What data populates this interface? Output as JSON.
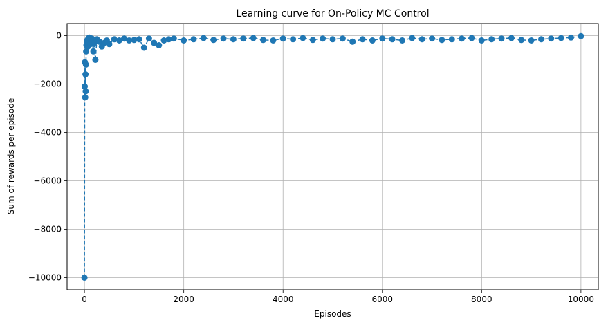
{
  "chart_data": {
    "type": "line",
    "title": "Learning curve for On-Policy MC Control",
    "xlabel": "Episodes",
    "ylabel": "Sum of rewards per episode",
    "xlim": [
      -350,
      10350
    ],
    "ylim": [
      -10500,
      500
    ],
    "xticks": [
      0,
      2000,
      4000,
      6000,
      8000,
      10000
    ],
    "yticks": [
      -10000,
      -8000,
      -6000,
      -4000,
      -2000,
      0
    ],
    "grid": true,
    "line_style": "dashed",
    "marker": "circle",
    "color": "#1f77b4",
    "series": [
      {
        "x": [
          0,
          5,
          10,
          15,
          20,
          25,
          30,
          35,
          40,
          50,
          60,
          70,
          80,
          90,
          100,
          120,
          150,
          180,
          200,
          220,
          250,
          300,
          350,
          400,
          450,
          500,
          600,
          700,
          800,
          900,
          1000,
          1100,
          1200,
          1300,
          1400,
          1500,
          1600,
          1700,
          1800,
          2000,
          2200,
          2400,
          2600,
          2800,
          3000,
          3200,
          3400,
          3600,
          3800,
          4000,
          4200,
          4400,
          4600,
          4800,
          5000,
          5200,
          5400,
          5600,
          5800,
          6000,
          6200,
          6400,
          6600,
          6800,
          7000,
          7200,
          7400,
          7600,
          7800,
          8000,
          8200,
          8400,
          8600,
          8800,
          9000,
          9200,
          9400,
          9600,
          9800,
          10000
        ],
        "y": [
          -10000,
          -2100,
          -1100,
          -2550,
          -1600,
          -2300,
          -1200,
          -650,
          -400,
          -250,
          -180,
          -450,
          -120,
          -90,
          -80,
          -350,
          -120,
          -650,
          -300,
          -1000,
          -150,
          -250,
          -450,
          -300,
          -200,
          -350,
          -150,
          -200,
          -120,
          -200,
          -180,
          -150,
          -500,
          -120,
          -300,
          -400,
          -200,
          -150,
          -120,
          -200,
          -150,
          -100,
          -180,
          -120,
          -150,
          -120,
          -100,
          -180,
          -200,
          -120,
          -150,
          -100,
          -180,
          -120,
          -150,
          -120,
          -250,
          -150,
          -200,
          -120,
          -150,
          -200,
          -100,
          -150,
          -120,
          -180,
          -150,
          -120,
          -100,
          -200,
          -150,
          -120,
          -100,
          -180,
          -200,
          -150,
          -120,
          -100,
          -80,
          -20
        ]
      }
    ]
  }
}
